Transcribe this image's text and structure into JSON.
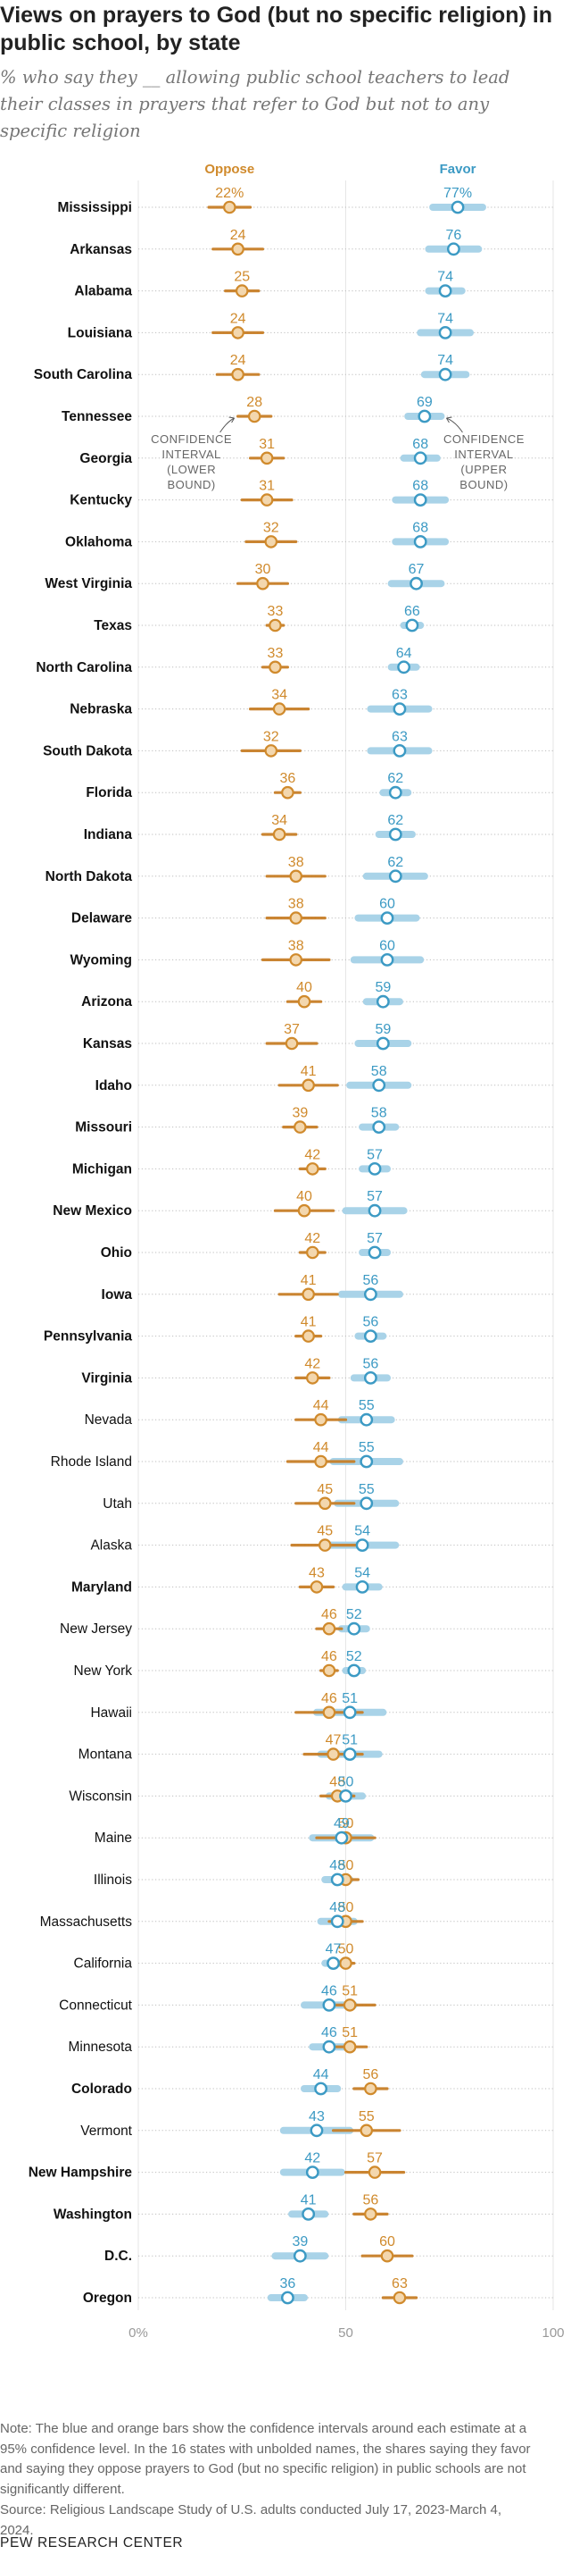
{
  "title": "Views on prayers to God (but no specific religion) in public school, by state",
  "subtitle": "% who say they __ allowing public school teachers to lead their classes in prayers that refer to God but not to any specific religion",
  "note": "Note: The blue and orange bars show the confidence intervals around each estimate at a 95% confidence level. In the 16 states with unbolded names, the shares saying they favor and saying they oppose prayers to God (but no specific religion) in public schools are not significantly different.",
  "source": "Source: Religious Landscape Study of U.S. adults conducted July 17, 2023-March 4, 2024.",
  "logo": "PEW RESEARCH CENTER",
  "colors": {
    "oppose": "#d08a2c",
    "favor": "#3c9ac4",
    "oppose_ci": "#c87f28",
    "favor_ci": "#a9d3e8"
  },
  "annotations": {
    "lower": [
      "CONFIDENCE",
      "INTERVAL",
      "(LOWER",
      "BOUND)"
    ],
    "upper": [
      "CONFIDENCE",
      "INTERVAL",
      "(UPPER",
      "BOUND)"
    ]
  },
  "chart_data": {
    "type": "dot-range",
    "series": [
      {
        "name": "Oppose",
        "color": "#d08a2c"
      },
      {
        "name": "Favor",
        "color": "#3c9ac4"
      }
    ],
    "xlim": [
      0,
      100
    ],
    "x_ticks": [
      "0%",
      "50",
      "100"
    ],
    "first_row_suffix": "%",
    "rows": [
      {
        "state": "Mississippi",
        "bold": true,
        "oppose": 22,
        "oppose_ci": [
          17,
          27
        ],
        "favor": 77,
        "favor_ci": [
          71,
          83
        ]
      },
      {
        "state": "Arkansas",
        "bold": true,
        "oppose": 24,
        "oppose_ci": [
          18,
          30
        ],
        "favor": 76,
        "favor_ci": [
          70,
          82
        ]
      },
      {
        "state": "Alabama",
        "bold": true,
        "oppose": 25,
        "oppose_ci": [
          21,
          29
        ],
        "favor": 74,
        "favor_ci": [
          70,
          78
        ]
      },
      {
        "state": "Louisiana",
        "bold": true,
        "oppose": 24,
        "oppose_ci": [
          18,
          30
        ],
        "favor": 74,
        "favor_ci": [
          68,
          80
        ]
      },
      {
        "state": "South Carolina",
        "bold": true,
        "oppose": 24,
        "oppose_ci": [
          19,
          29
        ],
        "favor": 74,
        "favor_ci": [
          69,
          79
        ]
      },
      {
        "state": "Tennessee",
        "bold": true,
        "oppose": 28,
        "oppose_ci": [
          24,
          32
        ],
        "favor": 69,
        "favor_ci": [
          65,
          73
        ]
      },
      {
        "state": "Georgia",
        "bold": true,
        "oppose": 31,
        "oppose_ci": [
          27,
          35
        ],
        "favor": 68,
        "favor_ci": [
          64,
          72
        ]
      },
      {
        "state": "Kentucky",
        "bold": true,
        "oppose": 31,
        "oppose_ci": [
          25,
          37
        ],
        "favor": 68,
        "favor_ci": [
          62,
          74
        ]
      },
      {
        "state": "Oklahoma",
        "bold": true,
        "oppose": 32,
        "oppose_ci": [
          26,
          38
        ],
        "favor": 68,
        "favor_ci": [
          62,
          74
        ]
      },
      {
        "state": "West Virginia",
        "bold": true,
        "oppose": 30,
        "oppose_ci": [
          24,
          36
        ],
        "favor": 67,
        "favor_ci": [
          61,
          73
        ]
      },
      {
        "state": "Texas",
        "bold": true,
        "oppose": 33,
        "oppose_ci": [
          31,
          35
        ],
        "favor": 66,
        "favor_ci": [
          64,
          68
        ]
      },
      {
        "state": "North Carolina",
        "bold": true,
        "oppose": 33,
        "oppose_ci": [
          30,
          36
        ],
        "favor": 64,
        "favor_ci": [
          61,
          67
        ]
      },
      {
        "state": "Nebraska",
        "bold": true,
        "oppose": 34,
        "oppose_ci": [
          27,
          41
        ],
        "favor": 63,
        "favor_ci": [
          56,
          70
        ]
      },
      {
        "state": "South Dakota",
        "bold": true,
        "oppose": 32,
        "oppose_ci": [
          25,
          39
        ],
        "favor": 63,
        "favor_ci": [
          56,
          70
        ]
      },
      {
        "state": "Florida",
        "bold": true,
        "oppose": 36,
        "oppose_ci": [
          33,
          39
        ],
        "favor": 62,
        "favor_ci": [
          59,
          65
        ]
      },
      {
        "state": "Indiana",
        "bold": true,
        "oppose": 34,
        "oppose_ci": [
          30,
          38
        ],
        "favor": 62,
        "favor_ci": [
          58,
          66
        ]
      },
      {
        "state": "North Dakota",
        "bold": true,
        "oppose": 38,
        "oppose_ci": [
          31,
          45
        ],
        "favor": 62,
        "favor_ci": [
          55,
          69
        ]
      },
      {
        "state": "Delaware",
        "bold": true,
        "oppose": 38,
        "oppose_ci": [
          31,
          45
        ],
        "favor": 60,
        "favor_ci": [
          53,
          67
        ]
      },
      {
        "state": "Wyoming",
        "bold": true,
        "oppose": 38,
        "oppose_ci": [
          30,
          46
        ],
        "favor": 60,
        "favor_ci": [
          52,
          68
        ]
      },
      {
        "state": "Arizona",
        "bold": true,
        "oppose": 40,
        "oppose_ci": [
          36,
          44
        ],
        "favor": 59,
        "favor_ci": [
          55,
          63
        ]
      },
      {
        "state": "Kansas",
        "bold": true,
        "oppose": 37,
        "oppose_ci": [
          31,
          43
        ],
        "favor": 59,
        "favor_ci": [
          53,
          65
        ]
      },
      {
        "state": "Idaho",
        "bold": true,
        "oppose": 41,
        "oppose_ci": [
          34,
          48
        ],
        "favor": 58,
        "favor_ci": [
          51,
          65
        ]
      },
      {
        "state": "Missouri",
        "bold": true,
        "oppose": 39,
        "oppose_ci": [
          35,
          43
        ],
        "favor": 58,
        "favor_ci": [
          54,
          62
        ]
      },
      {
        "state": "Michigan",
        "bold": true,
        "oppose": 42,
        "oppose_ci": [
          39,
          45
        ],
        "favor": 57,
        "favor_ci": [
          54,
          60
        ]
      },
      {
        "state": "New Mexico",
        "bold": true,
        "oppose": 40,
        "oppose_ci": [
          33,
          47
        ],
        "favor": 57,
        "favor_ci": [
          50,
          64
        ]
      },
      {
        "state": "Ohio",
        "bold": true,
        "oppose": 42,
        "oppose_ci": [
          39,
          45
        ],
        "favor": 57,
        "favor_ci": [
          54,
          60
        ]
      },
      {
        "state": "Iowa",
        "bold": true,
        "oppose": 41,
        "oppose_ci": [
          34,
          48
        ],
        "favor": 56,
        "favor_ci": [
          49,
          63
        ]
      },
      {
        "state": "Pennsylvania",
        "bold": true,
        "oppose": 41,
        "oppose_ci": [
          38,
          44
        ],
        "favor": 56,
        "favor_ci": [
          53,
          59
        ]
      },
      {
        "state": "Virginia",
        "bold": true,
        "oppose": 42,
        "oppose_ci": [
          38,
          46
        ],
        "favor": 56,
        "favor_ci": [
          52,
          60
        ]
      },
      {
        "state": "Nevada",
        "bold": false,
        "oppose": 44,
        "oppose_ci": [
          38,
          50
        ],
        "favor": 55,
        "favor_ci": [
          49,
          61
        ]
      },
      {
        "state": "Rhode Island",
        "bold": false,
        "oppose": 44,
        "oppose_ci": [
          36,
          52
        ],
        "favor": 55,
        "favor_ci": [
          47,
          63
        ]
      },
      {
        "state": "Utah",
        "bold": false,
        "oppose": 45,
        "oppose_ci": [
          38,
          52
        ],
        "favor": 55,
        "favor_ci": [
          48,
          62
        ]
      },
      {
        "state": "Alaska",
        "bold": false,
        "oppose": 45,
        "oppose_ci": [
          37,
          53
        ],
        "favor": 54,
        "favor_ci": [
          46,
          62
        ]
      },
      {
        "state": "Maryland",
        "bold": true,
        "oppose": 43,
        "oppose_ci": [
          39,
          47
        ],
        "favor": 54,
        "favor_ci": [
          50,
          58
        ]
      },
      {
        "state": "New Jersey",
        "bold": false,
        "oppose": 46,
        "oppose_ci": [
          43,
          49
        ],
        "favor": 52,
        "favor_ci": [
          49,
          55
        ]
      },
      {
        "state": "New York",
        "bold": false,
        "oppose": 46,
        "oppose_ci": [
          44,
          48
        ],
        "favor": 52,
        "favor_ci": [
          50,
          54
        ]
      },
      {
        "state": "Hawaii",
        "bold": false,
        "oppose": 46,
        "oppose_ci": [
          38,
          54
        ],
        "favor": 51,
        "favor_ci": [
          43,
          59
        ]
      },
      {
        "state": "Montana",
        "bold": false,
        "oppose": 47,
        "oppose_ci": [
          40,
          54
        ],
        "favor": 51,
        "favor_ci": [
          44,
          58
        ]
      },
      {
        "state": "Wisconsin",
        "bold": false,
        "oppose": 48,
        "oppose_ci": [
          44,
          52
        ],
        "favor": 50,
        "favor_ci": [
          46,
          54
        ]
      },
      {
        "state": "Maine",
        "bold": false,
        "oppose": 50,
        "oppose_ci": [
          43,
          57
        ],
        "favor": 49,
        "favor_ci": [
          42,
          56
        ]
      },
      {
        "state": "Illinois",
        "bold": false,
        "oppose": 50,
        "oppose_ci": [
          47,
          53
        ],
        "favor": 48,
        "favor_ci": [
          45,
          51
        ]
      },
      {
        "state": "Massachusetts",
        "bold": false,
        "oppose": 50,
        "oppose_ci": [
          46,
          54
        ],
        "favor": 48,
        "favor_ci": [
          44,
          52
        ]
      },
      {
        "state": "California",
        "bold": false,
        "oppose": 50,
        "oppose_ci": [
          48,
          52
        ],
        "favor": 47,
        "favor_ci": [
          45,
          49
        ]
      },
      {
        "state": "Connecticut",
        "bold": false,
        "oppose": 51,
        "oppose_ci": [
          45,
          57
        ],
        "favor": 46,
        "favor_ci": [
          40,
          52
        ]
      },
      {
        "state": "Minnesota",
        "bold": false,
        "oppose": 51,
        "oppose_ci": [
          47,
          55
        ],
        "favor": 46,
        "favor_ci": [
          42,
          50
        ]
      },
      {
        "state": "Colorado",
        "bold": true,
        "oppose": 56,
        "oppose_ci": [
          52,
          60
        ],
        "favor": 44,
        "favor_ci": [
          40,
          48
        ]
      },
      {
        "state": "Vermont",
        "bold": false,
        "oppose": 55,
        "oppose_ci": [
          47,
          63
        ],
        "favor": 43,
        "favor_ci": [
          35,
          51
        ]
      },
      {
        "state": "New Hampshire",
        "bold": true,
        "oppose": 57,
        "oppose_ci": [
          50,
          64
        ],
        "favor": 42,
        "favor_ci": [
          35,
          49
        ]
      },
      {
        "state": "Washington",
        "bold": true,
        "oppose": 56,
        "oppose_ci": [
          52,
          60
        ],
        "favor": 41,
        "favor_ci": [
          37,
          45
        ]
      },
      {
        "state": "D.C.",
        "bold": true,
        "oppose": 60,
        "oppose_ci": [
          54,
          66
        ],
        "favor": 39,
        "favor_ci": [
          33,
          45
        ]
      },
      {
        "state": "Oregon",
        "bold": true,
        "oppose": 63,
        "oppose_ci": [
          59,
          67
        ],
        "favor": 36,
        "favor_ci": [
          32,
          40
        ]
      }
    ]
  }
}
